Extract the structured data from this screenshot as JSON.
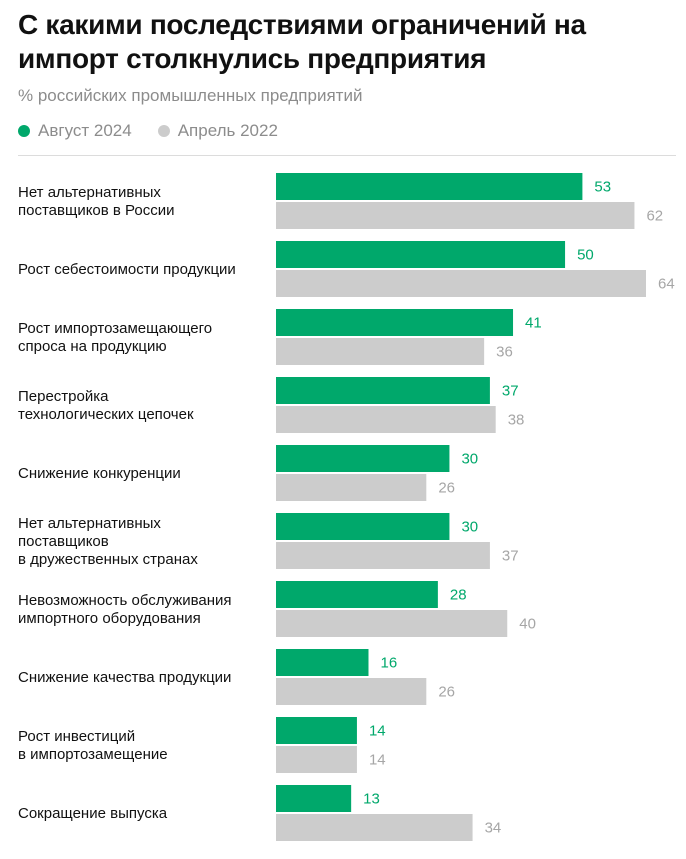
{
  "header": {
    "title": "С какими последствиями ограничений на импорт столкнулись предприятия",
    "subtitle": "% российских промышленных предприятий"
  },
  "colors": {
    "series_a": "#00a86b",
    "series_b": "#cccccc",
    "label_b": "#a6a6a6"
  },
  "chart_data": {
    "type": "bar",
    "orientation": "horizontal",
    "title": "С какими последствиями ограничений на импорт столкнулись предприятия",
    "subtitle": "% российских промышленных предприятий",
    "legend_position": "top-left",
    "categories": [
      [
        "Нет альтернативных",
        "поставщиков в России"
      ],
      [
        "Рост себестоимости продукции"
      ],
      [
        "Рост импортозамещающего",
        "спроса на продукцию"
      ],
      [
        "Перестройка",
        "технологических цепочек"
      ],
      [
        "Снижение конкуренции"
      ],
      [
        "Нет альтернативных",
        "поставщиков",
        "в дружественных странах"
      ],
      [
        "Невозможность обслуживания",
        "импортного оборудования"
      ],
      [
        "Снижение качества продукции"
      ],
      [
        "Рост инвестиций",
        "в импортозамещение"
      ],
      [
        "Сокращение выпуска"
      ]
    ],
    "series": [
      {
        "name": "Август 2024",
        "values": [
          53,
          50,
          41,
          37,
          30,
          30,
          28,
          16,
          14,
          13
        ]
      },
      {
        "name": "Апрель 2022",
        "values": [
          62,
          64,
          36,
          38,
          26,
          37,
          40,
          26,
          14,
          34
        ]
      }
    ],
    "xlim": [
      0,
      64
    ],
    "grid": false
  }
}
